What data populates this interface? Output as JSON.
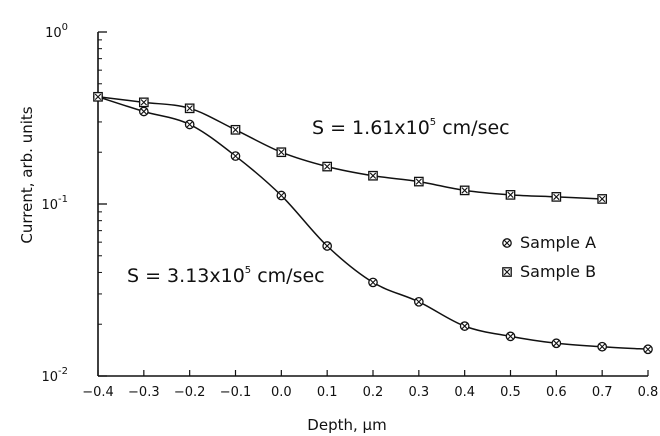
{
  "chart_data": {
    "type": "scatter",
    "xlabel": "Depth, μm",
    "ylabel": "Current, arb. units",
    "xlim": [
      -0.4,
      0.8
    ],
    "ylim": [
      0.01,
      1
    ],
    "y_scale": "log",
    "x_ticks": [
      "-0.4",
      "-0.3",
      "-0.2",
      "-0.1",
      "0.0",
      "0.1",
      "0.2",
      "0.3",
      "0.4",
      "0.5",
      "0.6",
      "0.7",
      "0.8"
    ],
    "y_ticks": [
      {
        "base": "10",
        "exp": "0",
        "value": 1
      },
      {
        "base": "10",
        "exp": "-1",
        "value": 0.1
      },
      {
        "base": "10",
        "exp": "-2",
        "value": 0.01
      }
    ],
    "grid": false,
    "legend_position": "right",
    "series": [
      {
        "name": "Sample A",
        "marker": "circle-x",
        "x": [
          -0.4,
          -0.3,
          -0.2,
          -0.1,
          0.0,
          0.1,
          0.2,
          0.3,
          0.4,
          0.5,
          0.6,
          0.7,
          0.8
        ],
        "y": [
          0.42,
          0.345,
          0.29,
          0.19,
          0.112,
          0.057,
          0.035,
          0.027,
          0.0195,
          0.017,
          0.0155,
          0.0148,
          0.0143
        ]
      },
      {
        "name": "Sample B",
        "marker": "square-x",
        "x": [
          -0.4,
          -0.3,
          -0.2,
          -0.1,
          0.0,
          0.1,
          0.2,
          0.3,
          0.4,
          0.5,
          0.6,
          0.7
        ],
        "y": [
          0.42,
          0.39,
          0.36,
          0.27,
          0.2,
          0.165,
          0.146,
          0.135,
          0.12,
          0.113,
          0.11,
          0.107
        ]
      }
    ],
    "annotations": [
      {
        "base": "S = 1.61x10",
        "exp": "5",
        "tail": " cm/sec",
        "series": "Sample B"
      },
      {
        "base": "S = 3.13x10",
        "exp": "5",
        "tail": " cm/sec",
        "series": "Sample A"
      }
    ]
  }
}
